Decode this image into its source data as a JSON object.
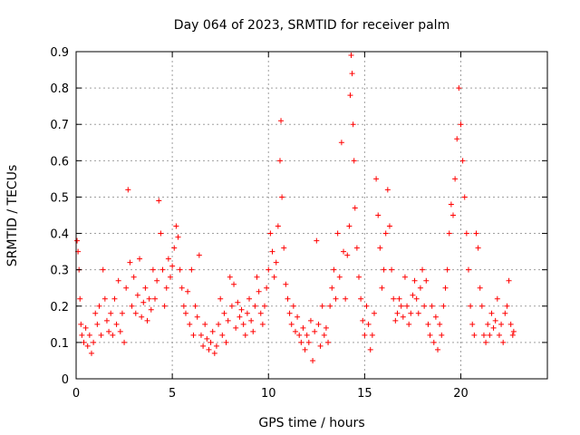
{
  "chart_data": {
    "type": "scatter",
    "title": "Day 064 of 2023, SRMTID for receiver palm",
    "xlabel": "GPS time / hours",
    "ylabel": "SRMTID / TECUs",
    "xlim": [
      0,
      24.5
    ],
    "ylim": [
      0,
      0.9
    ],
    "xticks": [
      0,
      5,
      10,
      15,
      20
    ],
    "xtick_labels": [
      "0",
      "5",
      "10",
      "15",
      "20"
    ],
    "yticks": [
      0,
      0.1,
      0.2,
      0.3,
      0.4,
      0.5,
      0.6,
      0.7,
      0.8,
      0.9
    ],
    "ytick_labels": [
      "0",
      "0.1",
      "0.2",
      "0.3",
      "0.4",
      "0.5",
      "0.6",
      "0.7",
      "0.8",
      "0.9"
    ],
    "grid": true,
    "marker": "plus",
    "color": "#ff0000",
    "series": [
      {
        "name": "SRMTID",
        "points": [
          [
            0.05,
            0.38
          ],
          [
            0.1,
            0.35
          ],
          [
            0.15,
            0.3
          ],
          [
            0.2,
            0.22
          ],
          [
            0.25,
            0.15
          ],
          [
            0.3,
            0.12
          ],
          [
            0.4,
            0.1
          ],
          [
            0.5,
            0.14
          ],
          [
            0.6,
            0.09
          ],
          [
            0.7,
            0.12
          ],
          [
            0.8,
            0.07
          ],
          [
            0.9,
            0.1
          ],
          [
            1.0,
            0.18
          ],
          [
            1.1,
            0.15
          ],
          [
            1.2,
            0.2
          ],
          [
            1.3,
            0.12
          ],
          [
            1.4,
            0.3
          ],
          [
            1.5,
            0.22
          ],
          [
            1.6,
            0.16
          ],
          [
            1.7,
            0.13
          ],
          [
            1.8,
            0.18
          ],
          [
            1.9,
            0.12
          ],
          [
            2.0,
            0.22
          ],
          [
            2.1,
            0.15
          ],
          [
            2.2,
            0.27
          ],
          [
            2.3,
            0.13
          ],
          [
            2.4,
            0.18
          ],
          [
            2.5,
            0.1
          ],
          [
            2.6,
            0.25
          ],
          [
            2.7,
            0.52
          ],
          [
            2.8,
            0.32
          ],
          [
            2.9,
            0.2
          ],
          [
            3.0,
            0.28
          ],
          [
            3.1,
            0.18
          ],
          [
            3.2,
            0.23
          ],
          [
            3.3,
            0.33
          ],
          [
            3.4,
            0.17
          ],
          [
            3.5,
            0.21
          ],
          [
            3.6,
            0.25
          ],
          [
            3.7,
            0.16
          ],
          [
            3.8,
            0.22
          ],
          [
            3.9,
            0.19
          ],
          [
            4.0,
            0.3
          ],
          [
            4.1,
            0.22
          ],
          [
            4.2,
            0.27
          ],
          [
            4.3,
            0.49
          ],
          [
            4.4,
            0.4
          ],
          [
            4.5,
            0.3
          ],
          [
            4.6,
            0.2
          ],
          [
            4.7,
            0.25
          ],
          [
            4.8,
            0.33
          ],
          [
            4.9,
            0.28
          ],
          [
            5.0,
            0.31
          ],
          [
            5.1,
            0.36
          ],
          [
            5.2,
            0.42
          ],
          [
            5.3,
            0.39
          ],
          [
            5.4,
            0.3
          ],
          [
            5.5,
            0.25
          ],
          [
            5.6,
            0.2
          ],
          [
            5.7,
            0.18
          ],
          [
            5.8,
            0.24
          ],
          [
            5.9,
            0.15
          ],
          [
            6.0,
            0.3
          ],
          [
            6.1,
            0.12
          ],
          [
            6.2,
            0.2
          ],
          [
            6.3,
            0.17
          ],
          [
            6.4,
            0.34
          ],
          [
            6.5,
            0.12
          ],
          [
            6.6,
            0.09
          ],
          [
            6.7,
            0.15
          ],
          [
            6.8,
            0.11
          ],
          [
            6.9,
            0.08
          ],
          [
            7.0,
            0.1
          ],
          [
            7.1,
            0.13
          ],
          [
            7.2,
            0.07
          ],
          [
            7.3,
            0.09
          ],
          [
            7.4,
            0.15
          ],
          [
            7.5,
            0.22
          ],
          [
            7.6,
            0.12
          ],
          [
            7.7,
            0.18
          ],
          [
            7.8,
            0.1
          ],
          [
            7.9,
            0.16
          ],
          [
            8.0,
            0.28
          ],
          [
            8.1,
            0.2
          ],
          [
            8.2,
            0.26
          ],
          [
            8.3,
            0.14
          ],
          [
            8.4,
            0.21
          ],
          [
            8.5,
            0.17
          ],
          [
            8.6,
            0.19
          ],
          [
            8.7,
            0.15
          ],
          [
            8.8,
            0.12
          ],
          [
            8.9,
            0.18
          ],
          [
            9.0,
            0.22
          ],
          [
            9.1,
            0.16
          ],
          [
            9.2,
            0.13
          ],
          [
            9.3,
            0.2
          ],
          [
            9.4,
            0.28
          ],
          [
            9.5,
            0.24
          ],
          [
            9.6,
            0.18
          ],
          [
            9.7,
            0.15
          ],
          [
            9.8,
            0.2
          ],
          [
            9.9,
            0.25
          ],
          [
            10.0,
            0.3
          ],
          [
            10.1,
            0.4
          ],
          [
            10.2,
            0.35
          ],
          [
            10.3,
            0.28
          ],
          [
            10.4,
            0.32
          ],
          [
            10.5,
            0.42
          ],
          [
            10.6,
            0.6
          ],
          [
            10.65,
            0.71
          ],
          [
            10.7,
            0.5
          ],
          [
            10.8,
            0.36
          ],
          [
            10.9,
            0.26
          ],
          [
            11.0,
            0.22
          ],
          [
            11.1,
            0.18
          ],
          [
            11.2,
            0.15
          ],
          [
            11.3,
            0.2
          ],
          [
            11.4,
            0.13
          ],
          [
            11.5,
            0.17
          ],
          [
            11.6,
            0.12
          ],
          [
            11.7,
            0.1
          ],
          [
            11.8,
            0.14
          ],
          [
            11.9,
            0.08
          ],
          [
            12.0,
            0.12
          ],
          [
            12.1,
            0.1
          ],
          [
            12.2,
            0.16
          ],
          [
            12.3,
            0.05
          ],
          [
            12.4,
            0.13
          ],
          [
            12.5,
            0.38
          ],
          [
            12.6,
            0.15
          ],
          [
            12.7,
            0.09
          ],
          [
            12.8,
            0.2
          ],
          [
            12.9,
            0.12
          ],
          [
            13.0,
            0.14
          ],
          [
            13.1,
            0.1
          ],
          [
            13.2,
            0.2
          ],
          [
            13.3,
            0.25
          ],
          [
            13.4,
            0.3
          ],
          [
            13.5,
            0.22
          ],
          [
            13.6,
            0.4
          ],
          [
            13.7,
            0.28
          ],
          [
            13.8,
            0.65
          ],
          [
            13.9,
            0.35
          ],
          [
            14.0,
            0.22
          ],
          [
            14.1,
            0.34
          ],
          [
            14.2,
            0.42
          ],
          [
            14.25,
            0.78
          ],
          [
            14.3,
            0.89
          ],
          [
            14.35,
            0.84
          ],
          [
            14.4,
            0.7
          ],
          [
            14.45,
            0.6
          ],
          [
            14.5,
            0.47
          ],
          [
            14.6,
            0.36
          ],
          [
            14.7,
            0.28
          ],
          [
            14.8,
            0.22
          ],
          [
            14.9,
            0.16
          ],
          [
            15.0,
            0.12
          ],
          [
            15.1,
            0.2
          ],
          [
            15.2,
            0.15
          ],
          [
            15.3,
            0.08
          ],
          [
            15.4,
            0.12
          ],
          [
            15.5,
            0.18
          ],
          [
            15.6,
            0.55
          ],
          [
            15.7,
            0.45
          ],
          [
            15.8,
            0.36
          ],
          [
            15.9,
            0.25
          ],
          [
            16.0,
            0.3
          ],
          [
            16.1,
            0.4
          ],
          [
            16.2,
            0.52
          ],
          [
            16.3,
            0.42
          ],
          [
            16.4,
            0.3
          ],
          [
            16.5,
            0.22
          ],
          [
            16.6,
            0.16
          ],
          [
            16.7,
            0.18
          ],
          [
            16.8,
            0.22
          ],
          [
            16.9,
            0.2
          ],
          [
            17.0,
            0.17
          ],
          [
            17.1,
            0.28
          ],
          [
            17.2,
            0.2
          ],
          [
            17.3,
            0.15
          ],
          [
            17.4,
            0.18
          ],
          [
            17.5,
            0.23
          ],
          [
            17.6,
            0.27
          ],
          [
            17.7,
            0.22
          ],
          [
            17.8,
            0.18
          ],
          [
            17.9,
            0.25
          ],
          [
            18.0,
            0.3
          ],
          [
            18.1,
            0.2
          ],
          [
            18.2,
            0.27
          ],
          [
            18.3,
            0.15
          ],
          [
            18.4,
            0.12
          ],
          [
            18.5,
            0.2
          ],
          [
            18.6,
            0.1
          ],
          [
            18.7,
            0.17
          ],
          [
            18.8,
            0.08
          ],
          [
            18.9,
            0.15
          ],
          [
            19.0,
            0.12
          ],
          [
            19.1,
            0.2
          ],
          [
            19.2,
            0.25
          ],
          [
            19.3,
            0.3
          ],
          [
            19.4,
            0.4
          ],
          [
            19.5,
            0.48
          ],
          [
            19.6,
            0.45
          ],
          [
            19.7,
            0.55
          ],
          [
            19.8,
            0.66
          ],
          [
            19.9,
            0.8
          ],
          [
            20.0,
            0.7
          ],
          [
            20.1,
            0.6
          ],
          [
            20.2,
            0.5
          ],
          [
            20.3,
            0.4
          ],
          [
            20.4,
            0.3
          ],
          [
            20.5,
            0.2
          ],
          [
            20.6,
            0.15
          ],
          [
            20.7,
            0.12
          ],
          [
            20.8,
            0.4
          ],
          [
            20.9,
            0.36
          ],
          [
            21.0,
            0.25
          ],
          [
            21.1,
            0.2
          ],
          [
            21.2,
            0.12
          ],
          [
            21.3,
            0.1
          ],
          [
            21.4,
            0.15
          ],
          [
            21.5,
            0.12
          ],
          [
            21.6,
            0.18
          ],
          [
            21.7,
            0.14
          ],
          [
            21.8,
            0.16
          ],
          [
            21.9,
            0.22
          ],
          [
            22.0,
            0.12
          ],
          [
            22.1,
            0.15
          ],
          [
            22.2,
            0.1
          ],
          [
            22.3,
            0.18
          ],
          [
            22.4,
            0.2
          ],
          [
            22.5,
            0.27
          ],
          [
            22.6,
            0.15
          ],
          [
            22.7,
            0.12
          ],
          [
            22.75,
            0.13
          ]
        ]
      }
    ]
  }
}
